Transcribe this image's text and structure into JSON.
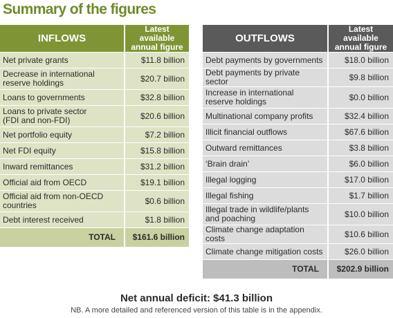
{
  "title": "Summary of the figures",
  "colors": {
    "title": "#6f8a2a",
    "inflows_header": "#7f9434",
    "inflows_row": "#dde3c4",
    "inflows_total": "#c8d19f",
    "outflows_header": "#5a5a5a",
    "outflows_row": "#dcdcdc",
    "outflows_total": "#bdbdbd"
  },
  "inflows": {
    "header": "INFLOWS",
    "value_header_line1": "Latest available",
    "value_header_line2": "annual figure",
    "rows": [
      {
        "label_lines": [
          "Net private grants"
        ],
        "value": "$11.8 billion"
      },
      {
        "label_lines": [
          "Decrease in international",
          "reserve holdings"
        ],
        "value": "$20.7 billion"
      },
      {
        "label_lines": [
          "Loans to governments"
        ],
        "value": "$32.8 billion"
      },
      {
        "label_lines": [
          "Loans to private sector",
          "(FDI and non-FDI)"
        ],
        "value": "$20.6 billion"
      },
      {
        "label_lines": [
          "Net portfolio equity"
        ],
        "value": "$7.2 billion"
      },
      {
        "label_lines": [
          "Net FDI equity"
        ],
        "value": "$15.8 billion"
      },
      {
        "label_lines": [
          "Inward remittances"
        ],
        "value": "$31.2 billion"
      },
      {
        "label_lines": [
          "Official aid from OECD"
        ],
        "value": "$19.1 billion"
      },
      {
        "label_lines": [
          "Official aid from non-OECD",
          "countries"
        ],
        "value": "$0.6 billion"
      },
      {
        "label_lines": [
          "Debt interest received"
        ],
        "value": "$1.8 billion"
      }
    ],
    "total_label": "TOTAL",
    "total_value": "$161.6 billion"
  },
  "outflows": {
    "header": "OUTFLOWS",
    "value_header_line1": "Latest available",
    "value_header_line2": "annual figure",
    "rows": [
      {
        "label_lines": [
          "Debt payments by governments"
        ],
        "value": "$18.0 billion"
      },
      {
        "label_lines": [
          "Debt payments by private sector"
        ],
        "value": "$9.8 billion"
      },
      {
        "label_lines": [
          "Increase in international",
          "reserve holdings"
        ],
        "value": "$0.0 billion"
      },
      {
        "label_lines": [
          "Multinational company profits"
        ],
        "value": "$32.4 billion"
      },
      {
        "label_lines": [
          "Illicit financial outflows"
        ],
        "value": "$67.6 billion"
      },
      {
        "label_lines": [
          "Outward remittances"
        ],
        "value": "$3.8 billion"
      },
      {
        "label_lines": [
          "‘Brain drain’"
        ],
        "value": "$6.0 billion"
      },
      {
        "label_lines": [
          "Illegal logging"
        ],
        "value": "$17.0 billion"
      },
      {
        "label_lines": [
          "Illegal fishing"
        ],
        "value": "$1.7 billion"
      },
      {
        "label_lines": [
          "Illegal trade in wildlife/plants",
          "and poaching"
        ],
        "value": "$10.0 billion"
      },
      {
        "label_lines": [
          "Climate change adaptation costs"
        ],
        "value": "$10.6 billion"
      },
      {
        "label_lines": [
          "Climate change mitigation costs"
        ],
        "value": "$26.0 billion"
      }
    ],
    "total_label": "TOTAL",
    "total_value": "$202.9 billion"
  },
  "deficit": "Net annual deficit: $41.3 billion",
  "note": "NB. A more detailed and referenced version of this table is in the appendix."
}
